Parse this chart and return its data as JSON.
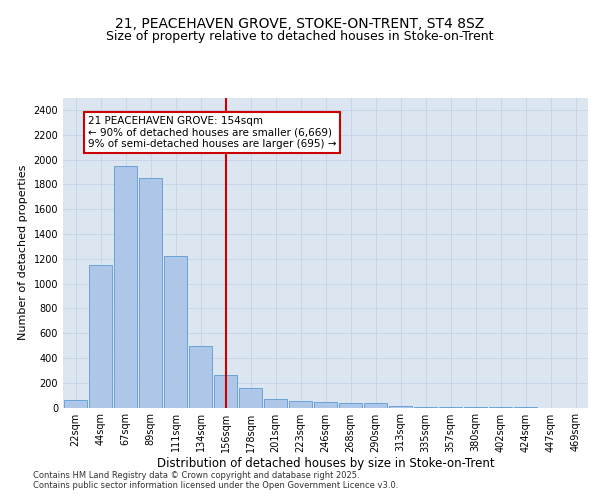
{
  "title_line1": "21, PEACEHAVEN GROVE, STOKE-ON-TRENT, ST4 8SZ",
  "title_line2": "Size of property relative to detached houses in Stoke-on-Trent",
  "xlabel": "Distribution of detached houses by size in Stoke-on-Trent",
  "ylabel": "Number of detached properties",
  "categories": [
    "22sqm",
    "44sqm",
    "67sqm",
    "89sqm",
    "111sqm",
    "134sqm",
    "156sqm",
    "178sqm",
    "201sqm",
    "223sqm",
    "246sqm",
    "268sqm",
    "290sqm",
    "313sqm",
    "335sqm",
    "357sqm",
    "380sqm",
    "402sqm",
    "424sqm",
    "447sqm",
    "469sqm"
  ],
  "values": [
    60,
    1150,
    1950,
    1850,
    1220,
    500,
    260,
    160,
    70,
    50,
    45,
    40,
    35,
    10,
    5,
    3,
    2,
    1,
    1,
    0,
    0
  ],
  "bar_color": "#aec6e8",
  "bar_edge_color": "#5b9bd5",
  "red_line_index": 6,
  "annotation_text": "21 PEACEHAVEN GROVE: 154sqm\n← 90% of detached houses are smaller (6,669)\n9% of semi-detached houses are larger (695) →",
  "annotation_box_color": "#ffffff",
  "annotation_box_edge": "#cc0000",
  "vline_color": "#cc0000",
  "ylim": [
    0,
    2500
  ],
  "yticks": [
    0,
    200,
    400,
    600,
    800,
    1000,
    1200,
    1400,
    1600,
    1800,
    2000,
    2200,
    2400
  ],
  "grid_color": "#c8d4e8",
  "background_color": "#dce6f1",
  "footer_line1": "Contains HM Land Registry data © Crown copyright and database right 2025.",
  "footer_line2": "Contains public sector information licensed under the Open Government Licence v3.0.",
  "title_fontsize": 10,
  "subtitle_fontsize": 9,
  "tick_fontsize": 7,
  "ylabel_fontsize": 8,
  "xlabel_fontsize": 8.5,
  "annotation_fontsize": 7.5,
  "footer_fontsize": 6
}
